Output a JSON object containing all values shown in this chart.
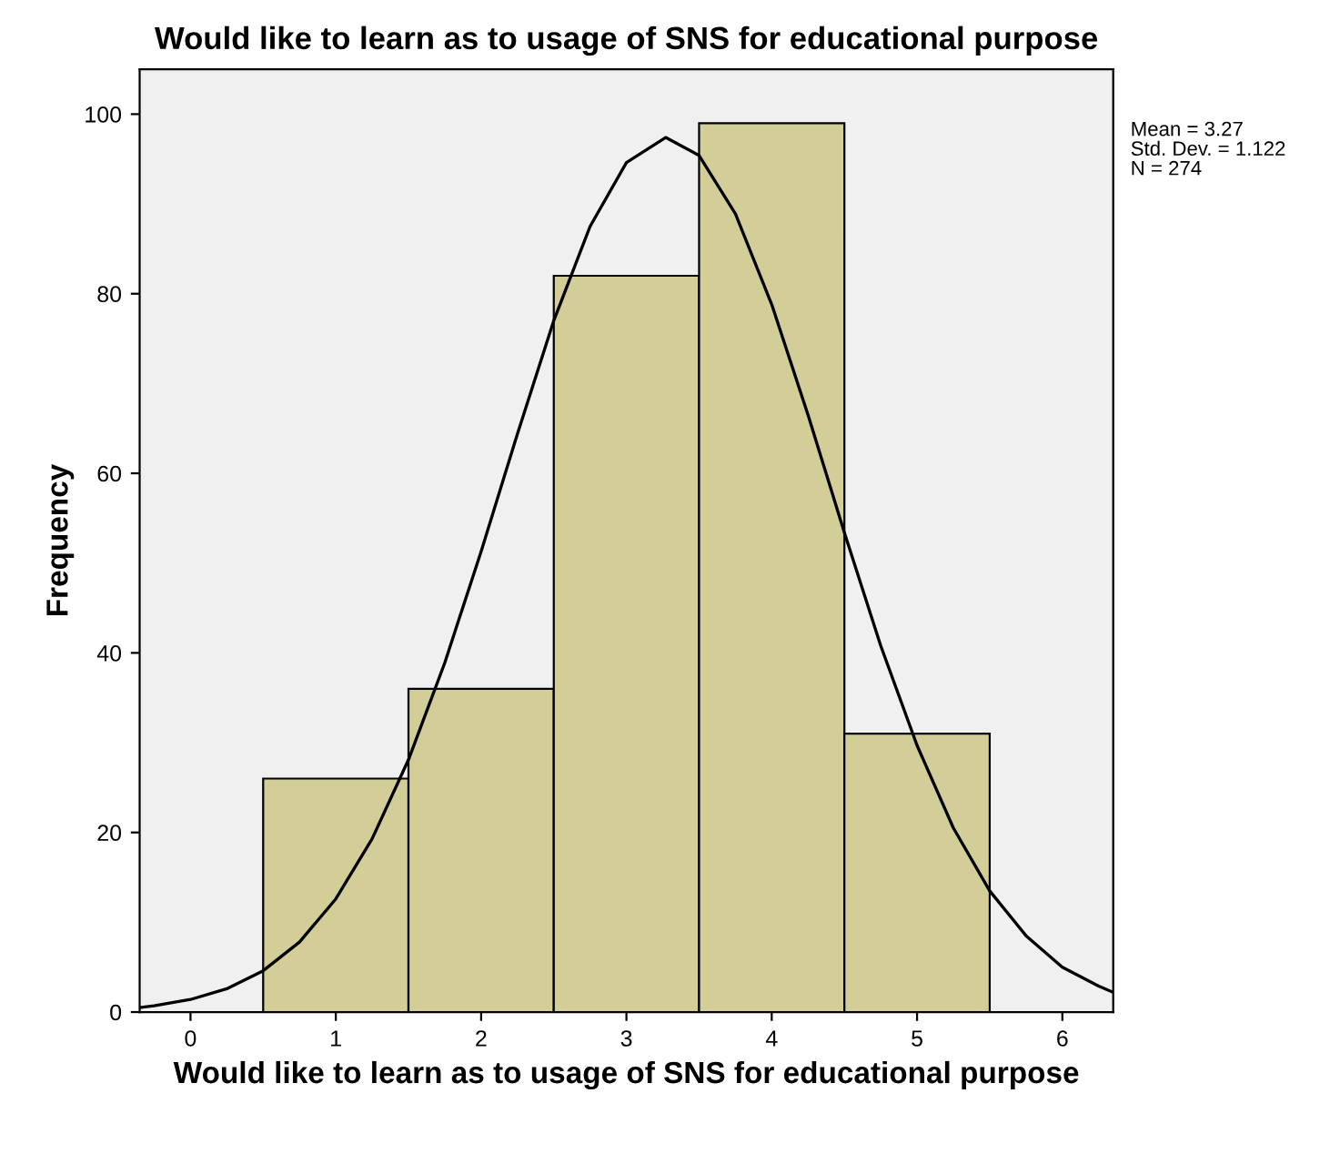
{
  "chart_data": {
    "type": "histogram",
    "title": "Would like to learn as to usage of SNS for educational purpose",
    "xlabel": "Would like to learn as to usage of SNS for educational purpose",
    "ylabel": "Frequency",
    "bins": [
      0.5,
      1.5,
      2.5,
      3.5,
      4.5,
      5.5
    ],
    "values": [
      26,
      36,
      82,
      99,
      31
    ],
    "color": "#d3ce97",
    "series": [
      {
        "type": "line",
        "color": "#000000",
        "x": [
          -0.35,
          -0.25,
          0,
          0.25,
          0.5,
          0.75,
          1,
          1.25,
          1.5,
          1.75,
          2,
          2.25,
          2.5,
          2.75,
          3,
          3.27,
          3.5,
          3.75,
          4,
          4.25,
          4.5,
          4.75,
          5,
          5.25,
          5.5,
          5.75,
          6,
          6.25,
          6.35
        ],
        "values": [
          0.5,
          0.7,
          1.4,
          2.6,
          4.6,
          7.8,
          12.6,
          19.3,
          28.1,
          38.9,
          51.3,
          64.4,
          77.0,
          87.5,
          94.6,
          97.4,
          95.4,
          88.9,
          78.8,
          66.5,
          53.4,
          40.8,
          29.7,
          20.5,
          13.5,
          8.5,
          5.0,
          2.9,
          2.2
        ]
      }
    ],
    "xlim": [
      -0.35,
      6.35
    ],
    "ylim": [
      0,
      105
    ],
    "xticks": [
      0,
      1,
      2,
      3,
      4,
      5,
      6
    ],
    "yticks": [
      0,
      20,
      40,
      60,
      80,
      100
    ],
    "grid": false,
    "legend": false,
    "annotations": [
      "Mean = 3.27",
      "Std. Dev. = 1.122",
      "N = 274"
    ]
  }
}
